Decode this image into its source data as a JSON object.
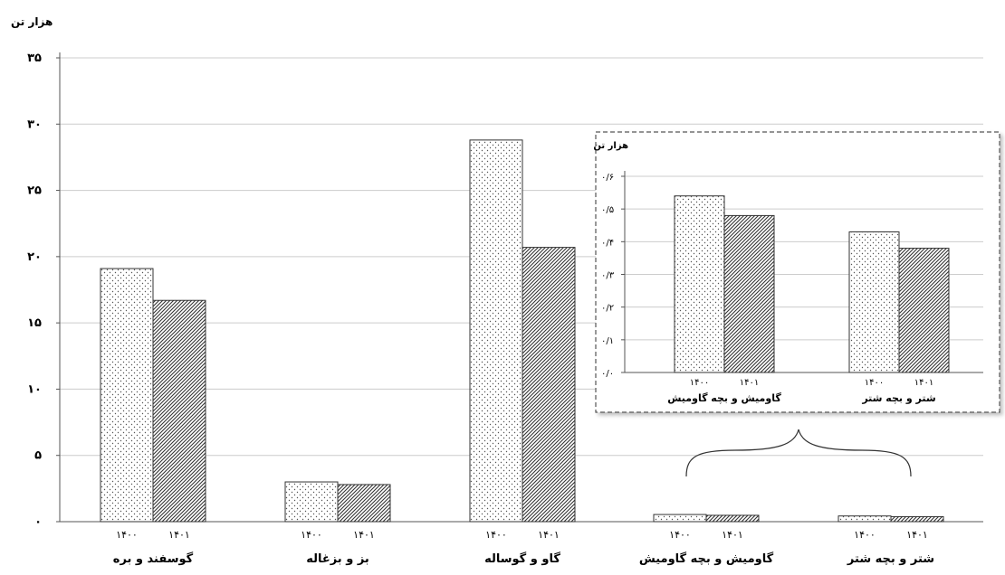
{
  "chart_data": [
    {
      "type": "bar",
      "ylabel": "هزار تن",
      "ylim": [
        0,
        35
      ],
      "yticks": [
        "۰",
        "۵",
        "۱۰",
        "۱۵",
        "۲۰",
        "۲۵",
        "۳۰",
        "۳۵"
      ],
      "grid": true,
      "categories": [
        "گوسفند و بره",
        "بز و بزغاله",
        "گاو و گوساله",
        "گاومیش و بچه گاومیش",
        "شتر و بچه شتر"
      ],
      "series": [
        {
          "name": "۱۴۰۰",
          "values": [
            19.1,
            3.0,
            28.8,
            0.54,
            0.43
          ]
        },
        {
          "name": "۱۴۰۱",
          "values": [
            16.7,
            2.8,
            20.7,
            0.48,
            0.38
          ]
        }
      ],
      "x_tick_labels": [
        "۱۴۰۰",
        "۱۴۰۱"
      ]
    },
    {
      "type": "bar",
      "ylabel": "هزار تن",
      "ylim": [
        0,
        0.6
      ],
      "yticks": [
        "۰/۰",
        "۰/۱",
        "۰/۲",
        "۰/۳",
        "۰/۴",
        "۰/۵",
        "۰/۶"
      ],
      "grid": true,
      "categories": [
        "گاومیش و بچه گاومیش",
        "شتر و بچه شتر"
      ],
      "series": [
        {
          "name": "۱۴۰۰",
          "values": [
            0.54,
            0.43
          ]
        },
        {
          "name": "۱۴۰۱",
          "values": [
            0.48,
            0.38
          ]
        }
      ],
      "x_tick_labels": [
        "۱۴۰۰",
        "۱۴۰۱"
      ]
    }
  ],
  "colors": {
    "axis": "#555555",
    "grid": "#cccccc",
    "bar_border": "#333333",
    "inset_border": "#555555"
  }
}
